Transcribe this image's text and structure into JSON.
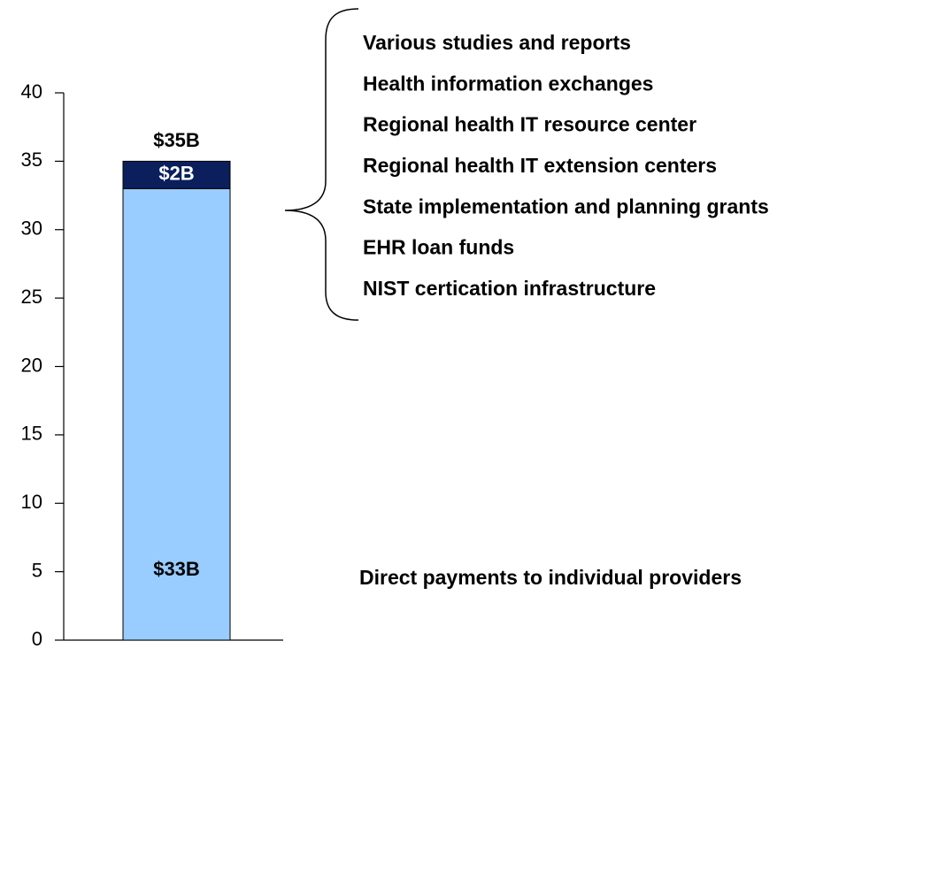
{
  "chart_data": {
    "type": "stacked_bar",
    "categories": [
      null
    ],
    "series": [
      {
        "color": "#99ccff",
        "values": [
          33
        ],
        "value_labels": [
          "$33B"
        ],
        "label_color": "#000000"
      },
      {
        "color": "#0a1f5c",
        "values": [
          2
        ],
        "value_labels": [
          "$2B"
        ],
        "label_color": "#ffffff"
      }
    ],
    "total_label": "$35B",
    "ylim": [
      0,
      40
    ],
    "yticks": [
      0,
      5,
      10,
      15,
      20,
      25,
      30,
      35,
      40
    ],
    "grid": false,
    "annotations": [
      "Various studies and reports",
      "Health information exchanges",
      "Regional health IT resource center",
      "Regional health IT extension centers",
      "State implementation and planning grants",
      "EHR loan funds",
      "NIST certication infrastructure"
    ],
    "note": "Direct payments to individual providers"
  }
}
